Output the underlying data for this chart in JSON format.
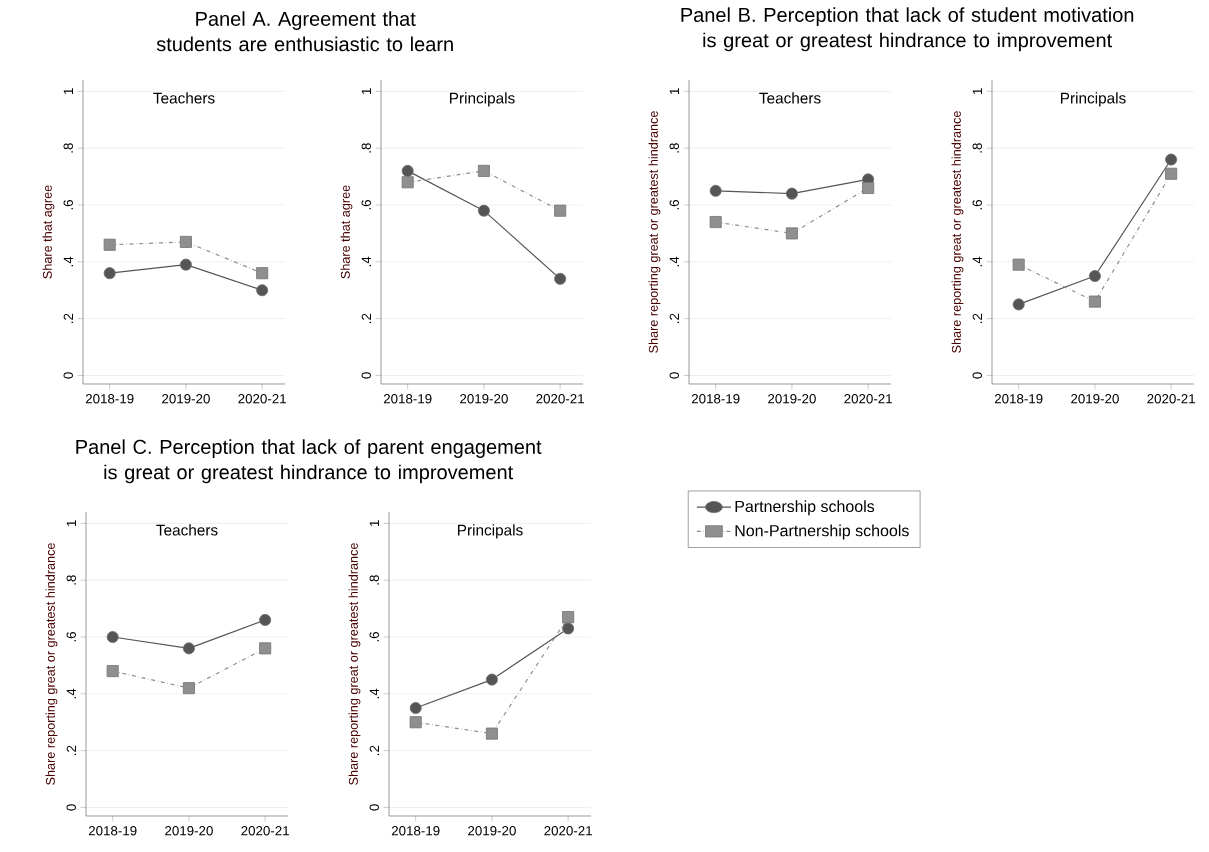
{
  "chart_data": [
    {
      "type": "line",
      "title": "Panel A. Agreement that students are enthusiastic to learn",
      "subtitle": "Teachers",
      "ylabel": "Share that agree",
      "categories": [
        "2018-19",
        "2019-20",
        "2020-21"
      ],
      "ylim": [
        -0.03,
        1.04
      ],
      "yticks": [
        0,
        {
          "value": 0.2,
          "label": ".2"
        },
        {
          "value": 0.4,
          "label": ".4"
        },
        {
          "value": 0.6,
          "label": ".6"
        },
        {
          "value": 0.8,
          "label": ".8"
        },
        1
      ],
      "grid": "y",
      "series": [
        {
          "color": "#555555",
          "marker": "circle",
          "line_style": "solid",
          "values": [
            0.36,
            0.39,
            0.3
          ]
        },
        {
          "color": "#8f8f8f",
          "marker": "square",
          "line_style": "dashdot",
          "values": [
            0.46,
            0.47,
            0.36
          ]
        }
      ]
    },
    {
      "type": "line",
      "subtitle": "Principals",
      "ylabel": "Share that agree",
      "categories": [
        "2018-19",
        "2019-20",
        "2020-21"
      ],
      "ylim": [
        -0.03,
        1.04
      ],
      "yticks": [
        0,
        {
          "value": 0.2,
          "label": ".2"
        },
        {
          "value": 0.4,
          "label": ".4"
        },
        {
          "value": 0.6,
          "label": ".6"
        },
        {
          "value": 0.8,
          "label": ".8"
        },
        1
      ],
      "grid": "y",
      "series": [
        {
          "color": "#555555",
          "marker": "circle",
          "line_style": "solid",
          "values": [
            0.72,
            0.58,
            0.34
          ]
        },
        {
          "color": "#8f8f8f",
          "marker": "square",
          "line_style": "dashdot",
          "values": [
            0.68,
            0.72,
            0.58
          ]
        }
      ]
    },
    {
      "type": "line",
      "title": "Panel B. Perception that lack of student motivation is great or greatest hindrance to improvement",
      "subtitle": "Teachers",
      "ylabel": "Share reporting great or greatest hindrance",
      "categories": [
        "2018-19",
        "2019-20",
        "2020-21"
      ],
      "ylim": [
        -0.03,
        1.04
      ],
      "yticks": [
        0,
        {
          "value": 0.2,
          "label": ".2"
        },
        {
          "value": 0.4,
          "label": ".4"
        },
        {
          "value": 0.6,
          "label": ".6"
        },
        {
          "value": 0.8,
          "label": ".8"
        },
        1
      ],
      "grid": "y",
      "series": [
        {
          "color": "#555555",
          "marker": "circle",
          "line_style": "solid",
          "values": [
            0.65,
            0.64,
            0.69
          ]
        },
        {
          "color": "#8f8f8f",
          "marker": "square",
          "line_style": "dashdot",
          "values": [
            0.54,
            0.5,
            0.66
          ]
        }
      ]
    },
    {
      "type": "line",
      "subtitle": "Principals",
      "ylabel": "Share reporting great or greatest hindrance",
      "categories": [
        "2018-19",
        "2019-20",
        "2020-21"
      ],
      "ylim": [
        -0.03,
        1.04
      ],
      "yticks": [
        0,
        {
          "value": 0.2,
          "label": ".2"
        },
        {
          "value": 0.4,
          "label": ".4"
        },
        {
          "value": 0.6,
          "label": ".6"
        },
        {
          "value": 0.8,
          "label": ".8"
        },
        1
      ],
      "grid": "y",
      "series": [
        {
          "color": "#555555",
          "marker": "circle",
          "line_style": "solid",
          "values": [
            0.25,
            0.35,
            0.76
          ]
        },
        {
          "color": "#8f8f8f",
          "marker": "square",
          "line_style": "dashdot",
          "values": [
            0.39,
            0.26,
            0.71
          ]
        }
      ]
    },
    {
      "type": "line",
      "title": "Panel C. Perception that lack of parent engagement is great or greatest hindrance to improvement",
      "subtitle": "Teachers",
      "ylabel": "Share reporting great or greatest hindrance",
      "categories": [
        "2018-19",
        "2019-20",
        "2020-21"
      ],
      "ylim": [
        -0.03,
        1.04
      ],
      "yticks": [
        0,
        {
          "value": 0.2,
          "label": ".2"
        },
        {
          "value": 0.4,
          "label": ".4"
        },
        {
          "value": 0.6,
          "label": ".6"
        },
        {
          "value": 0.8,
          "label": ".8"
        },
        1
      ],
      "grid": "y",
      "series": [
        {
          "color": "#555555",
          "marker": "circle",
          "line_style": "solid",
          "values": [
            0.6,
            0.56,
            0.66
          ]
        },
        {
          "color": "#8f8f8f",
          "marker": "square",
          "line_style": "dashdot",
          "values": [
            0.48,
            0.42,
            0.56
          ]
        }
      ]
    },
    {
      "type": "line",
      "subtitle": "Principals",
      "ylabel": "Share reporting great or greatest hindrance",
      "categories": [
        "2018-19",
        "2019-20",
        "2020-21"
      ],
      "ylim": [
        -0.03,
        1.04
      ],
      "yticks": [
        0,
        {
          "value": 0.2,
          "label": ".2"
        },
        {
          "value": 0.4,
          "label": ".4"
        },
        {
          "value": 0.6,
          "label": ".6"
        },
        {
          "value": 0.8,
          "label": ".8"
        },
        1
      ],
      "grid": "y",
      "legend": "right",
      "series": [
        {
          "name": "Partnership schools",
          "color": "#555555",
          "marker": "circle",
          "line_style": "solid",
          "values": [
            0.35,
            0.45,
            0.63
          ]
        },
        {
          "name": "Non-Partnership schools",
          "color": "#8f8f8f",
          "marker": "square",
          "line_style": "dashdot",
          "values": [
            0.3,
            0.26,
            0.67
          ]
        }
      ]
    }
  ]
}
